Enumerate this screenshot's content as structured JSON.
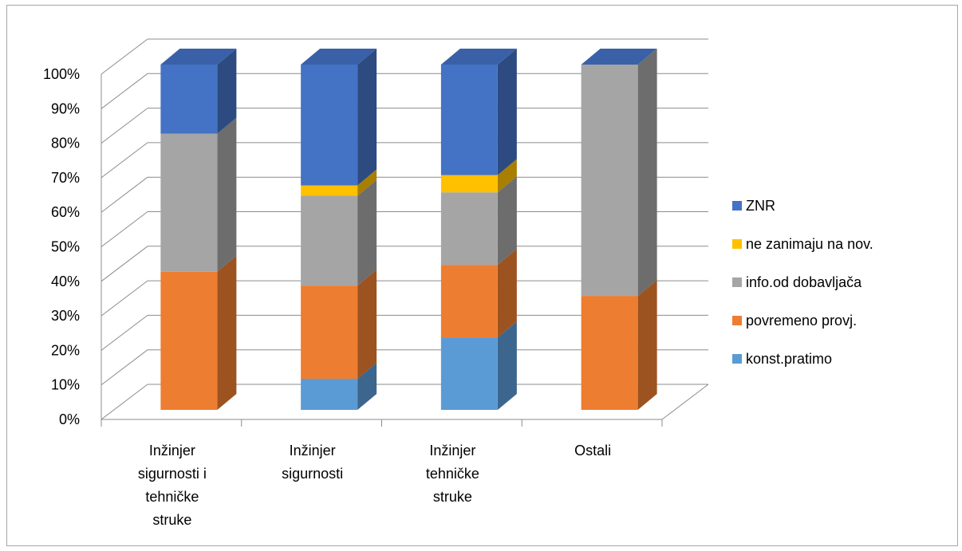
{
  "chart_data": {
    "type": "bar",
    "stacked": true,
    "three_d": true,
    "categories": [
      [
        "Inžinjer",
        "sigurnosti i",
        "tehničke",
        "struke"
      ],
      [
        "Inžinjer",
        "sigurnosti"
      ],
      [
        "Inžinjer",
        "tehničke",
        "struke"
      ],
      [
        "Ostali"
      ]
    ],
    "series": [
      {
        "name": "konst.pratimo",
        "color": "#5b9bd5",
        "values": [
          0,
          9,
          21,
          0
        ]
      },
      {
        "name": "povremeno provj.",
        "color": "#ed7d31",
        "values": [
          40,
          27,
          21,
          33
        ]
      },
      {
        "name": "info.od dobavljača",
        "color": "#a5a5a5",
        "values": [
          40,
          26,
          21,
          67
        ]
      },
      {
        "name": "ne zanimaju na nov.",
        "color": "#ffc000",
        "values": [
          0,
          3,
          5,
          0
        ]
      },
      {
        "name": "ZNR",
        "color": "#4472c4",
        "values": [
          20,
          35,
          32,
          0
        ]
      }
    ],
    "yticks": [
      "0%",
      "10%",
      "20%",
      "30%",
      "40%",
      "50%",
      "60%",
      "70%",
      "80%",
      "90%",
      "100%"
    ],
    "ylim": [
      0,
      100
    ],
    "grid": true,
    "legend_position": "right",
    "legend_order": [
      "ZNR",
      "ne zanimaju na nov.",
      "info.od dobavljača",
      "povremeno provj.",
      "konst.pratimo"
    ]
  }
}
